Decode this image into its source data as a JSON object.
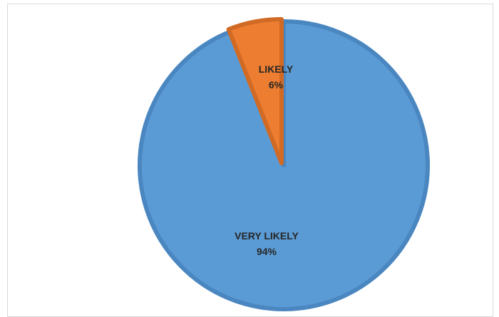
{
  "chart_data": {
    "type": "pie",
    "title": "",
    "categories": [
      "VERY LIKELY",
      "LIKELY"
    ],
    "values": [
      94,
      6
    ],
    "value_labels": [
      "94%",
      "6%"
    ],
    "colors": [
      "#5B9BD5",
      "#ED7D31"
    ],
    "border_colors": [
      "#4A86C0",
      "#D06A24"
    ],
    "start_angle_deg": 0,
    "direction": "clockwise",
    "legend": "none",
    "exploded": true
  }
}
